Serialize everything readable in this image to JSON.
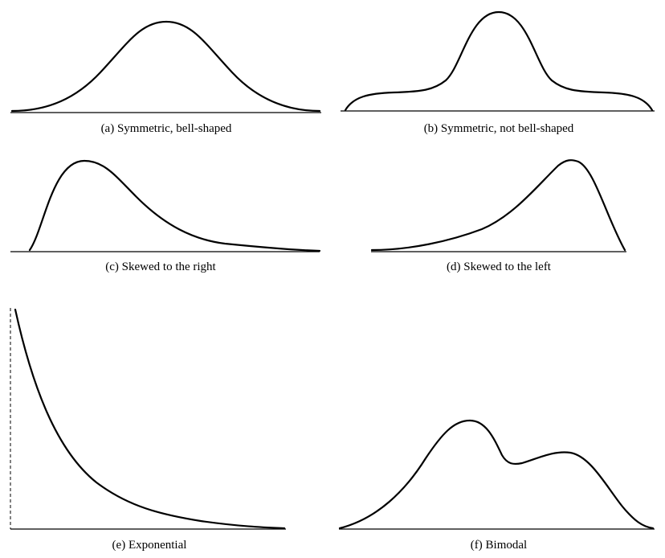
{
  "panels": [
    {
      "id": "a",
      "caption": "(a) Symmetric, bell-shaped"
    },
    {
      "id": "b",
      "caption": "(b) Symmetric, not bell-shaped"
    },
    {
      "id": "c",
      "caption": "(c) Skewed to the right"
    },
    {
      "id": "d",
      "caption": "(d) Skewed to the left"
    },
    {
      "id": "e",
      "caption": "(e) Exponential"
    },
    {
      "id": "f",
      "caption": "(f) Bimodal"
    }
  ],
  "colors": {
    "curve": "#000000",
    "background": "#ffffff"
  }
}
